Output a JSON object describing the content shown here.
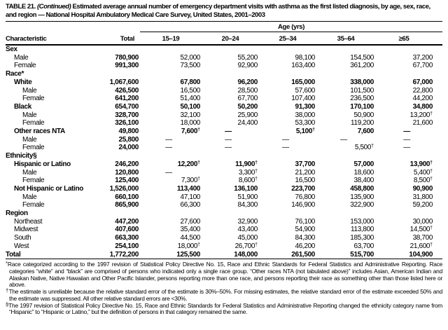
{
  "title": {
    "prefix": "TABLE 21.",
    "continued": "(Continued)",
    "text": "Estimated average annual number of emergency department visits with asthma as the first listed diagnosis, by age, sex, race, and region — National Hospital Ambulatory Medical Care Survey, United States, 2001–2003"
  },
  "table": {
    "age_span_label": "Age (yrs)",
    "columns": [
      "Characteristic",
      "Total",
      "15–19",
      "20–24",
      "25–34",
      "35–64",
      "≥65"
    ],
    "rows": [
      {
        "label": "Sex",
        "indent": 0,
        "bold": true,
        "values": [
          "",
          "",
          "",
          "",
          "",
          ""
        ]
      },
      {
        "label": "Male",
        "indent": 1,
        "bold": false,
        "values": [
          "780,900",
          "52,000",
          "55,200",
          "98,100",
          "154,500",
          "37,200"
        ]
      },
      {
        "label": "Female",
        "indent": 1,
        "bold": false,
        "values": [
          "991,300",
          "73,500",
          "92,900",
          "163,400",
          "361,200",
          "67,700"
        ]
      },
      {
        "label": "Race*",
        "indent": 0,
        "bold": true,
        "values": [
          "",
          "",
          "",
          "",
          "",
          ""
        ]
      },
      {
        "label": "White",
        "indent": 1,
        "bold": true,
        "values": [
          "1,067,600",
          "67,800",
          "96,200",
          "165,000",
          "338,000",
          "67,000"
        ]
      },
      {
        "label": "Male",
        "indent": 2,
        "bold": false,
        "values": [
          "426,500",
          "16,500",
          "28,500",
          "57,600",
          "101,500",
          "22,800"
        ]
      },
      {
        "label": "Female",
        "indent": 2,
        "bold": false,
        "values": [
          "641,200",
          "51,400",
          "67,700",
          "107,400",
          "236,500",
          "44,200"
        ]
      },
      {
        "label": "Black",
        "indent": 1,
        "bold": true,
        "values": [
          "654,700",
          "50,100",
          "50,200",
          "91,300",
          "170,100",
          "34,800"
        ]
      },
      {
        "label": "Male",
        "indent": 2,
        "bold": false,
        "values": [
          "328,700",
          "32,100",
          "25,900",
          "38,000",
          "50,900",
          "13,200†"
        ]
      },
      {
        "label": "Female",
        "indent": 2,
        "bold": false,
        "values": [
          "326,100",
          "18,000",
          "24,400",
          "53,300",
          "119,200",
          "21,600"
        ]
      },
      {
        "label": "Other races NTA",
        "indent": 1,
        "bold": true,
        "values": [
          "49,800",
          "7,600†",
          "—",
          "5,100†",
          "7,600",
          "—"
        ]
      },
      {
        "label": "Male",
        "indent": 2,
        "bold": false,
        "values": [
          "25,800",
          "—",
          "—",
          "—",
          "—",
          "—"
        ]
      },
      {
        "label": "Female",
        "indent": 2,
        "bold": false,
        "values": [
          "24,000",
          "—",
          "—",
          "—",
          "5,500†",
          "—"
        ]
      },
      {
        "label": "Ethnicity§",
        "indent": 0,
        "bold": true,
        "values": [
          "",
          "",
          "",
          "",
          "",
          ""
        ]
      },
      {
        "label": "Hispanic or Latino",
        "indent": 1,
        "bold": true,
        "values": [
          "246,200",
          "12,200†",
          "11,900†",
          "37,700",
          "57,000",
          "13,900†"
        ]
      },
      {
        "label": "Male",
        "indent": 2,
        "bold": false,
        "values": [
          "120,800",
          "—",
          "3,300†",
          "21,200",
          "18,600",
          "5,400†"
        ]
      },
      {
        "label": "Female",
        "indent": 2,
        "bold": false,
        "values": [
          "125,400",
          "7,300†",
          "8,600†",
          "16,500",
          "38,400",
          "8,500†"
        ]
      },
      {
        "label": "Not Hispanic or Latino",
        "indent": 1,
        "bold": true,
        "values": [
          "1,526,000",
          "113,400",
          "136,100",
          "223,700",
          "458,800",
          "90,900"
        ]
      },
      {
        "label": "Male",
        "indent": 2,
        "bold": false,
        "values": [
          "660,100",
          "47,100",
          "51,900",
          "76,800",
          "135,900",
          "31,800"
        ]
      },
      {
        "label": "Female",
        "indent": 2,
        "bold": false,
        "values": [
          "865,900",
          "66,300",
          "84,300",
          "146,900",
          "322,900",
          "59,200"
        ]
      },
      {
        "label": "Region",
        "indent": 0,
        "bold": true,
        "values": [
          "",
          "",
          "",
          "",
          "",
          ""
        ]
      },
      {
        "label": "Northeast",
        "indent": 1,
        "bold": false,
        "values": [
          "447,200",
          "27,600",
          "32,900",
          "76,100",
          "153,000",
          "30,000"
        ]
      },
      {
        "label": "Midwest",
        "indent": 1,
        "bold": false,
        "values": [
          "407,600",
          "35,400",
          "43,400",
          "54,900",
          "113,800",
          "14,500†"
        ]
      },
      {
        "label": "South",
        "indent": 1,
        "bold": false,
        "values": [
          "663,300",
          "44,500",
          "45,000",
          "84,300",
          "185,300",
          "38,700"
        ]
      },
      {
        "label": "West",
        "indent": 1,
        "bold": false,
        "values": [
          "254,100",
          "18,000†",
          "26,700†",
          "46,200",
          "63,700",
          "21,600†"
        ]
      },
      {
        "label": "Total",
        "indent": 0,
        "bold": true,
        "values": [
          "1,772,200",
          "125,500",
          "148,000",
          "261,500",
          "515,700",
          "104,900"
        ]
      }
    ]
  },
  "footnotes": [
    {
      "marker": "*",
      "text": "Race categorized according to the 1997 revision of Statistical Policy Directive No. 15, Race and Ethnic Standards for Federal Statistics and Administrative Reporting. Race categories “white” and “black” are comprised of persons who indicated only a single race group. “Other races NTA (not tabulated above)” includes Asian, American Indian and Alaskan Native, Native Hawaiian and Other Pacific Islander, persons reporting more than one race, and persons reporting their race as something other than those listed here or above."
    },
    {
      "marker": "†",
      "text": "The estimate is unreliable because the relative standard error of the estimate is 30%–50%. For missing estimates, the relative standard error of the estimate exceeded 50% and the estimate was suppressed. All other relative standard errors are <30%."
    },
    {
      "marker": "§",
      "text": "The 1997 revision of Statistical Policy Directive No. 15, Race and Ethnic Standards for Federal Statistics and Administrative Reporting changed the ethnicity category name from “Hispanic” to “Hispanic or Latino,” but the definition of persons in that category remained the same."
    }
  ]
}
